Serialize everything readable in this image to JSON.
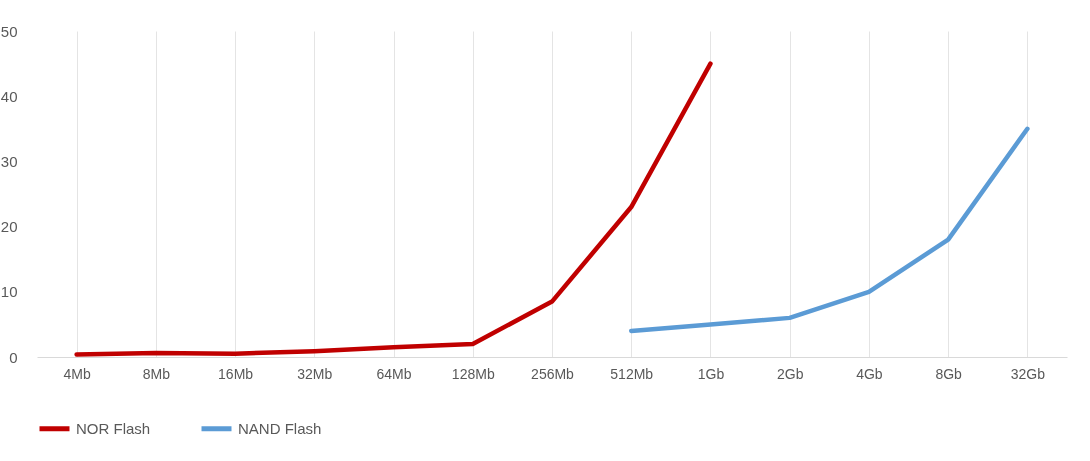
{
  "chart_data": {
    "type": "line",
    "categories": [
      "4Mb",
      "8Mb",
      "16Mb",
      "32Mb",
      "64Mb",
      "128Mb",
      "256Mb",
      "512Mb",
      "1Gb",
      "2Gb",
      "4Gb",
      "8Gb",
      "32Gb"
    ],
    "series": [
      {
        "name": "NOR Flash",
        "color": "#c00000",
        "values": [
          0.4,
          0.6,
          0.5,
          0.9,
          1.5,
          2,
          8.5,
          23,
          45,
          null,
          null,
          null,
          null
        ]
      },
      {
        "name": "NAND Flash",
        "color": "#5b9bd5",
        "values": [
          null,
          null,
          null,
          null,
          null,
          null,
          null,
          4,
          5,
          6,
          10,
          18,
          35
        ]
      }
    ],
    "ylim": [
      0,
      50
    ],
    "yticks": [
      0,
      10,
      20,
      30,
      40,
      50
    ],
    "grid": "x",
    "legend": "bottom",
    "marker": "none",
    "line_style": "solid"
  }
}
